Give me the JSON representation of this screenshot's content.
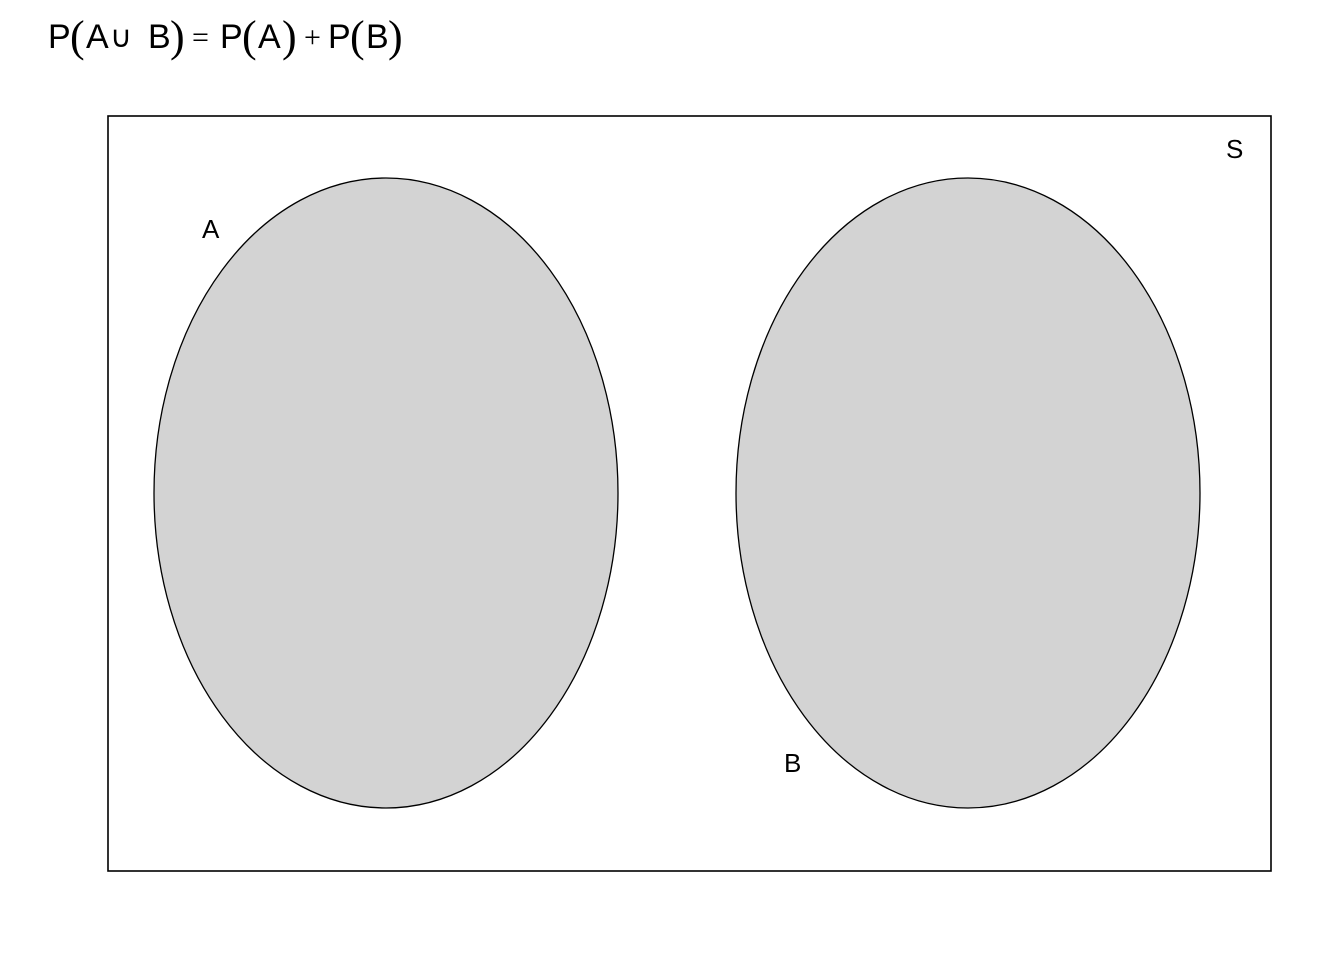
{
  "formula": {
    "p1": "P",
    "open1": "(",
    "a1": "A",
    "union": "∪",
    "b1": "B",
    "close1": ")",
    "equals": "=",
    "p2": "P",
    "open2": "(",
    "a2": "A",
    "close2": ")",
    "plus": "+",
    "p3": "P",
    "open3": "(",
    "b2": "B",
    "close3": ")"
  },
  "labels": {
    "sample_space": "S",
    "set_a": "A",
    "set_b": "B"
  },
  "colors": {
    "set_fill": "#d3d3d3",
    "stroke": "#000000",
    "background": "#ffffff"
  }
}
